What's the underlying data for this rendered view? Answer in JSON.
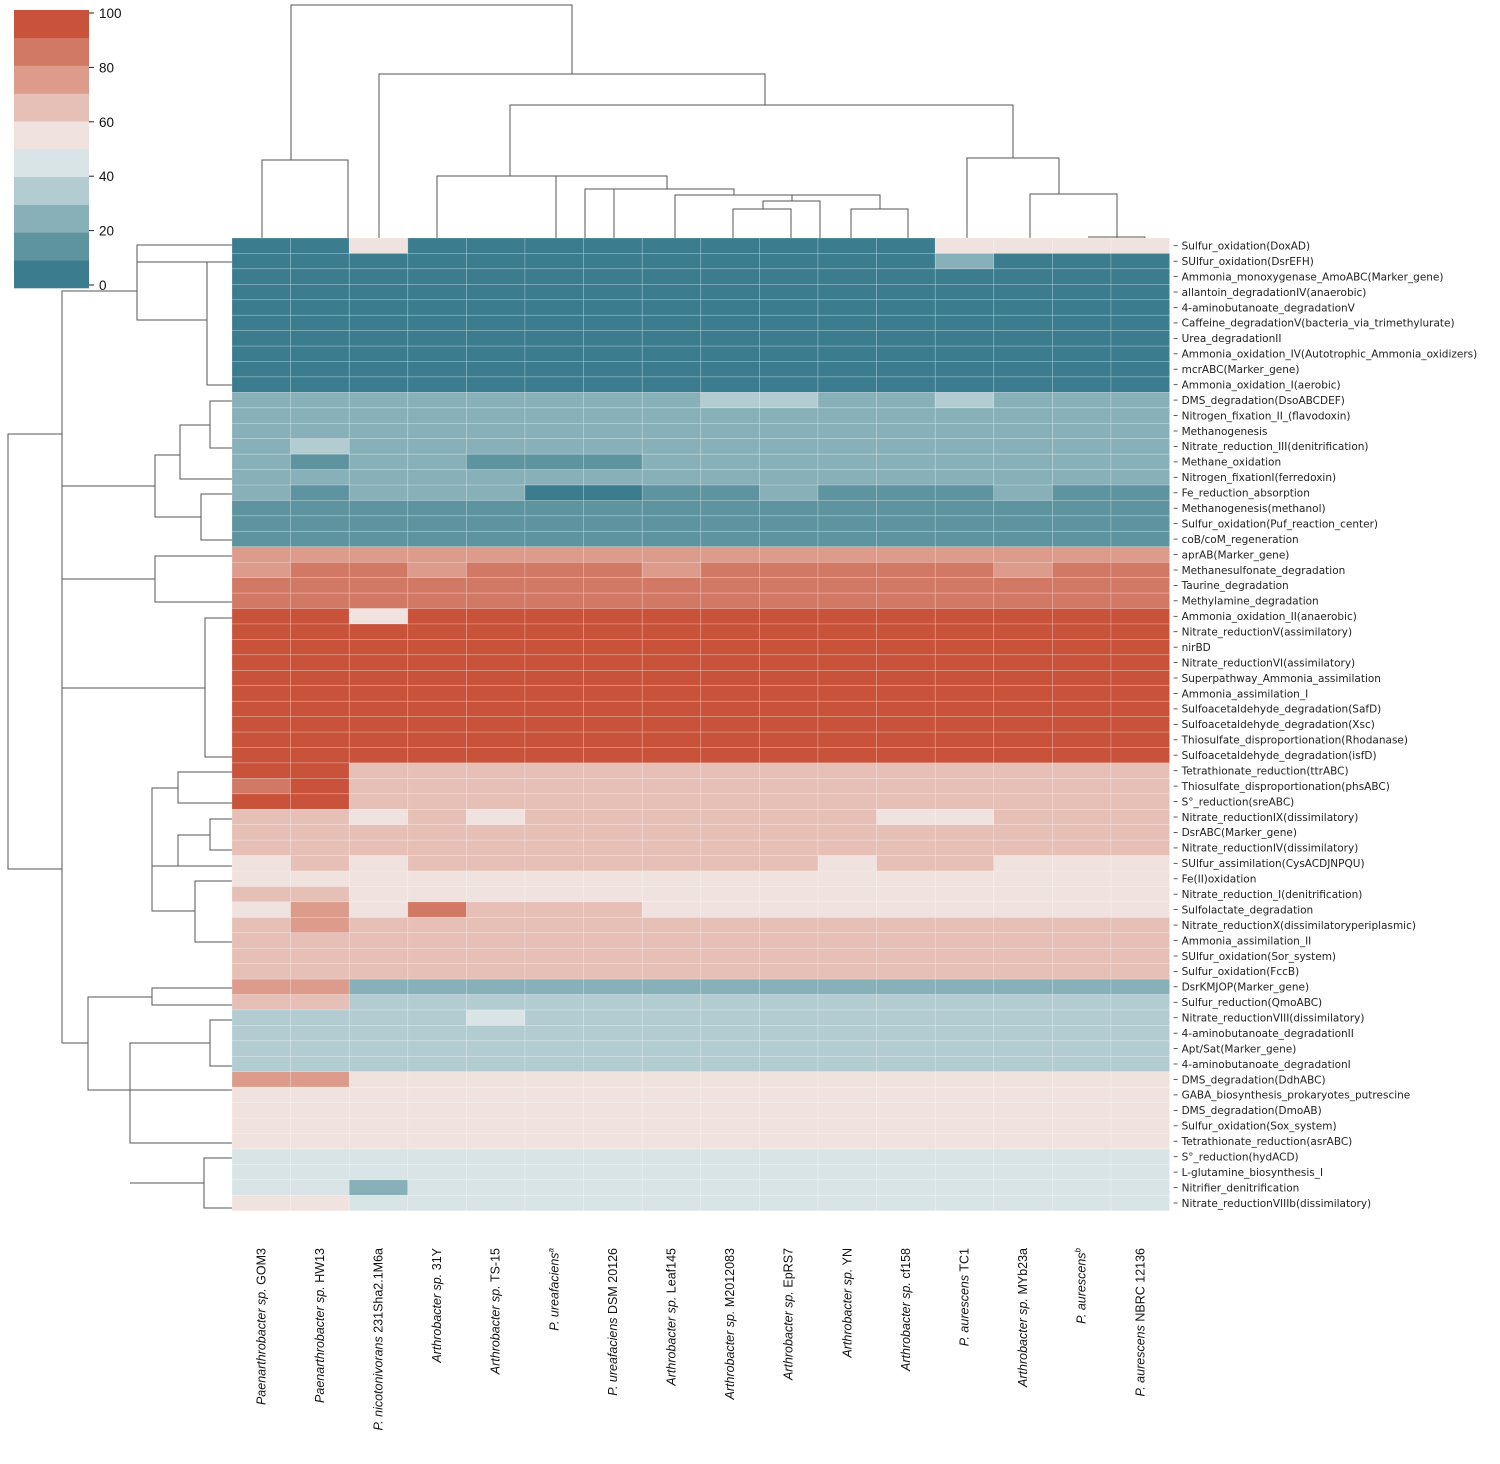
{
  "chart_data": {
    "type": "heatmap",
    "title": "",
    "colorbar": {
      "ticks": [
        "100",
        "80",
        "60",
        "40",
        "20",
        "0"
      ],
      "levels": 10,
      "palette": [
        "#3b7d8f",
        "#5e949f",
        "#88b0b8",
        "#b2ccd1",
        "#d9e4e6",
        "#f0e2df",
        "#e6bfb6",
        "#dc9b8b",
        "#d27965",
        "#c9533a"
      ]
    },
    "columns": [
      {
        "italic": "Paenarthrobacter sp.",
        "rest": " GOM3",
        "sup": ""
      },
      {
        "italic": "Paenarthrobacter sp.",
        "rest": " HW13",
        "sup": ""
      },
      {
        "italic": "P. nicotonivorans",
        "rest": " 231Sha2.1M6a",
        "sup": ""
      },
      {
        "italic": "Arthrobacter sp.",
        "rest": " 31Y",
        "sup": ""
      },
      {
        "italic": "Arthrobacter sp.",
        "rest": " TS-15",
        "sup": ""
      },
      {
        "italic": "P. ureafaciens",
        "rest": "",
        "sup": "a"
      },
      {
        "italic": "P. ureafaciens",
        "rest": " DSM 20126",
        "sup": ""
      },
      {
        "italic": "Arthrobacter sp.",
        "rest": " Leaf145",
        "sup": ""
      },
      {
        "italic": "Arthrobacter sp.",
        "rest": " M2012083",
        "sup": ""
      },
      {
        "italic": "Arthrobacter sp.",
        "rest": " EpRS7",
        "sup": ""
      },
      {
        "italic": "Arthrobacter sp.",
        "rest": " YN",
        "sup": ""
      },
      {
        "italic": "Arthrobacter sp.",
        "rest": " cf158",
        "sup": ""
      },
      {
        "italic": "P. aurescens",
        "rest": " TC1",
        "sup": ""
      },
      {
        "italic": "Arthrobacter sp.",
        "rest": " MYb23a",
        "sup": ""
      },
      {
        "italic": "P. aurescens",
        "rest": "",
        "sup": "b"
      },
      {
        "italic": "P. aurescens",
        "rest": " NBRC 12136",
        "sup": ""
      }
    ],
    "rows": [
      "Sulfur_oxidation(DoxAD)",
      "SUlfur_oxidation(DsrEFH)",
      "Ammonia_monoxygenase_AmoABC(Marker_gene)",
      "allantoin_degradationIV(anaerobic)",
      "4-aminobutanoate_degradationV",
      "Caffeine_degradationV(bacteria_via_trimethylurate)",
      "Urea_degradationII",
      "Ammonia_oxidation_IV(Autotrophic_Ammonia_oxidizers)",
      "mcrABC(Marker_gene)",
      "Ammonia_oxidation_I(aerobic)",
      "DMS_degradation(DsoABCDEF)",
      "Nitrogen_fixation_II_(flavodoxin)",
      "Methanogenesis",
      "Nitrate_reduction_III(denitrification)",
      "Methane_oxidation",
      "Nitrogen_fixationI(ferredoxin)",
      "Fe_reduction_absorption",
      "Methanogenesis(methanol)",
      "Sulfur_oxidation(Puf_reaction_center)",
      "coB/coM_regeneration",
      "aprAB(Marker_gene)",
      "Methanesulfonate_degradation",
      "Taurine_degradation",
      "Methylamine_degradation",
      "Ammonia_oxidation_II(anaerobic)",
      "Nitrate_reductionV(assimilatory)",
      "nirBD",
      "Nitrate_reductionVI(assimilatory)",
      "Superpathway_Ammonia_assimilation",
      "Ammonia_assimilation_I",
      "Sulfoacetaldehyde_degradation(SafD)",
      "Sulfoacetaldehyde_degradation(Xsc)",
      "Thiosulfate_disproportionation(Rhodanase)",
      "Sulfoacetaldehyde_degradation(isfD)",
      "Tetrathionate_reduction(ttrABC)",
      "Thiosulfate_disproportionation(phsABC)",
      "S°_reduction(sreABC)",
      "Nitrate_reductionIX(dissimilatory)",
      "DsrABC(Marker_gene)",
      "Nitrate_reductionIV(dissimilatory)",
      "SUlfur_assimilation(CysACDJNPQU)",
      "Fe(II)oxidation",
      "Nitrate_reduction_I(denitrification)",
      "Sulfolactate_degradation",
      "Nitrate_reductionX(dissimilatoryperiplasmic)",
      "Ammonia_assimilation_II",
      "SUlfur_oxidation(Sor_system)",
      "Sulfur_oxidation(FccB)",
      "DsrKMJOP(Marker_gene)",
      "Sulfur_reduction(QmoABC)",
      "Nitrate_reductionVIII(dissimilatory)",
      "4-aminobutanoate_degradationII",
      "Apt/Sat(Marker_gene)",
      "4-aminobutanoate_degradationI",
      "DMS_degradation(DdhABC)",
      "GABA_biosynthesis_prokaryotes_putrescine",
      "DMS_degradation(DmoAB)",
      "Sulfur_oxidation(Sox_system)",
      "Tetrathionate_reduction(asrABC)",
      "S°_reduction(hydACD)",
      "L-glutamine_biosynthesis_I",
      "Nitrifier_denitrification",
      "Nitrate_reductionVIIIb(dissimilatory)"
    ],
    "values": [
      [
        0,
        0,
        55,
        0,
        0,
        0,
        0,
        0,
        0,
        0,
        0,
        0,
        55,
        55,
        55,
        55
      ],
      [
        0,
        0,
        0,
        0,
        0,
        0,
        0,
        0,
        0,
        0,
        0,
        0,
        25,
        0,
        0,
        0
      ],
      [
        0,
        0,
        0,
        0,
        0,
        0,
        0,
        0,
        0,
        0,
        0,
        0,
        0,
        0,
        0,
        0
      ],
      [
        0,
        0,
        0,
        0,
        0,
        0,
        0,
        0,
        0,
        0,
        0,
        0,
        0,
        0,
        0,
        0
      ],
      [
        0,
        0,
        0,
        0,
        0,
        0,
        0,
        0,
        0,
        0,
        0,
        0,
        0,
        0,
        0,
        0
      ],
      [
        0,
        0,
        0,
        0,
        0,
        0,
        0,
        0,
        0,
        0,
        0,
        0,
        0,
        0,
        0,
        0
      ],
      [
        0,
        0,
        0,
        0,
        0,
        0,
        0,
        0,
        0,
        0,
        0,
        0,
        0,
        0,
        0,
        0
      ],
      [
        0,
        0,
        0,
        0,
        0,
        0,
        0,
        0,
        0,
        0,
        0,
        0,
        0,
        0,
        0,
        0
      ],
      [
        0,
        0,
        0,
        0,
        0,
        0,
        0,
        0,
        0,
        0,
        0,
        0,
        0,
        0,
        0,
        0
      ],
      [
        0,
        0,
        0,
        0,
        0,
        0,
        0,
        0,
        0,
        0,
        0,
        0,
        0,
        0,
        0,
        0
      ],
      [
        25,
        25,
        25,
        25,
        25,
        25,
        25,
        25,
        35,
        35,
        25,
        25,
        35,
        25,
        25,
        25
      ],
      [
        25,
        25,
        25,
        25,
        25,
        25,
        25,
        25,
        25,
        25,
        25,
        25,
        25,
        25,
        25,
        25
      ],
      [
        25,
        25,
        25,
        25,
        25,
        25,
        25,
        25,
        25,
        25,
        25,
        25,
        25,
        25,
        25,
        25
      ],
      [
        25,
        35,
        25,
        25,
        25,
        25,
        25,
        25,
        25,
        25,
        25,
        25,
        25,
        25,
        25,
        25
      ],
      [
        25,
        15,
        25,
        25,
        15,
        15,
        15,
        25,
        25,
        25,
        25,
        25,
        25,
        25,
        25,
        25
      ],
      [
        25,
        25,
        25,
        25,
        25,
        25,
        25,
        25,
        25,
        25,
        25,
        25,
        25,
        25,
        25,
        25
      ],
      [
        25,
        15,
        25,
        25,
        25,
        5,
        5,
        15,
        15,
        25,
        15,
        15,
        15,
        25,
        15,
        15
      ],
      [
        15,
        15,
        15,
        15,
        15,
        15,
        15,
        15,
        15,
        15,
        15,
        15,
        15,
        15,
        15,
        15
      ],
      [
        15,
        15,
        15,
        15,
        15,
        15,
        15,
        15,
        15,
        15,
        15,
        15,
        15,
        15,
        15,
        15
      ],
      [
        15,
        15,
        15,
        15,
        15,
        15,
        15,
        15,
        15,
        15,
        15,
        15,
        15,
        15,
        15,
        15
      ],
      [
        75,
        75,
        75,
        75,
        75,
        75,
        75,
        75,
        75,
        75,
        75,
        75,
        75,
        75,
        75,
        75
      ],
      [
        75,
        85,
        85,
        75,
        85,
        85,
        85,
        75,
        85,
        85,
        85,
        85,
        85,
        75,
        85,
        85
      ],
      [
        85,
        85,
        85,
        85,
        85,
        85,
        85,
        85,
        85,
        85,
        85,
        85,
        85,
        85,
        85,
        85
      ],
      [
        85,
        85,
        85,
        85,
        85,
        85,
        85,
        85,
        85,
        85,
        85,
        85,
        85,
        85,
        85,
        85
      ],
      [
        95,
        95,
        55,
        95,
        95,
        95,
        95,
        95,
        95,
        95,
        95,
        95,
        95,
        95,
        95,
        95
      ],
      [
        95,
        95,
        95,
        95,
        95,
        95,
        95,
        95,
        95,
        95,
        95,
        95,
        95,
        95,
        95,
        95
      ],
      [
        95,
        95,
        95,
        95,
        95,
        95,
        95,
        95,
        95,
        95,
        95,
        95,
        95,
        95,
        95,
        95
      ],
      [
        95,
        95,
        95,
        95,
        95,
        95,
        95,
        95,
        95,
        95,
        95,
        95,
        95,
        95,
        95,
        95
      ],
      [
        95,
        95,
        95,
        95,
        95,
        95,
        95,
        95,
        95,
        95,
        95,
        95,
        95,
        95,
        95,
        95
      ],
      [
        95,
        95,
        95,
        95,
        95,
        95,
        95,
        95,
        95,
        95,
        95,
        95,
        95,
        95,
        95,
        95
      ],
      [
        95,
        95,
        95,
        95,
        95,
        95,
        95,
        95,
        95,
        95,
        95,
        95,
        95,
        95,
        95,
        95
      ],
      [
        95,
        95,
        95,
        95,
        95,
        95,
        95,
        95,
        95,
        95,
        95,
        95,
        95,
        95,
        95,
        95
      ],
      [
        95,
        95,
        95,
        95,
        95,
        95,
        95,
        95,
        95,
        95,
        95,
        95,
        95,
        95,
        95,
        95
      ],
      [
        95,
        95,
        95,
        95,
        95,
        95,
        95,
        95,
        95,
        95,
        95,
        95,
        95,
        95,
        95,
        95
      ],
      [
        95,
        95,
        65,
        65,
        65,
        65,
        65,
        65,
        65,
        65,
        65,
        65,
        65,
        65,
        65,
        65
      ],
      [
        85,
        95,
        65,
        65,
        65,
        65,
        65,
        65,
        65,
        65,
        65,
        65,
        65,
        65,
        65,
        65
      ],
      [
        95,
        95,
        65,
        65,
        65,
        65,
        65,
        65,
        65,
        65,
        65,
        65,
        65,
        65,
        65,
        65
      ],
      [
        65,
        65,
        55,
        65,
        55,
        65,
        65,
        65,
        65,
        65,
        65,
        55,
        55,
        65,
        65,
        65
      ],
      [
        65,
        65,
        65,
        65,
        65,
        65,
        65,
        65,
        65,
        65,
        65,
        65,
        65,
        65,
        65,
        65
      ],
      [
        65,
        65,
        65,
        65,
        65,
        65,
        65,
        65,
        65,
        65,
        65,
        65,
        65,
        65,
        65,
        65
      ],
      [
        55,
        65,
        55,
        65,
        65,
        65,
        65,
        65,
        65,
        65,
        55,
        65,
        65,
        55,
        55,
        55
      ],
      [
        55,
        55,
        55,
        55,
        55,
        55,
        55,
        55,
        55,
        55,
        55,
        55,
        55,
        55,
        55,
        55
      ],
      [
        65,
        65,
        55,
        55,
        55,
        55,
        55,
        55,
        55,
        55,
        55,
        55,
        55,
        55,
        55,
        55
      ],
      [
        55,
        75,
        55,
        85,
        65,
        65,
        65,
        55,
        55,
        55,
        55,
        55,
        55,
        55,
        55,
        55
      ],
      [
        65,
        75,
        65,
        65,
        65,
        65,
        65,
        65,
        65,
        65,
        65,
        65,
        65,
        65,
        65,
        65
      ],
      [
        65,
        65,
        65,
        65,
        65,
        65,
        65,
        65,
        65,
        65,
        65,
        65,
        65,
        65,
        65,
        65
      ],
      [
        65,
        65,
        65,
        65,
        65,
        65,
        65,
        65,
        65,
        65,
        65,
        65,
        65,
        65,
        65,
        65
      ],
      [
        65,
        65,
        65,
        65,
        65,
        65,
        65,
        65,
        65,
        65,
        65,
        65,
        65,
        65,
        65,
        65
      ],
      [
        75,
        75,
        25,
        25,
        25,
        25,
        25,
        25,
        25,
        25,
        25,
        25,
        25,
        25,
        25,
        25
      ],
      [
        65,
        65,
        35,
        35,
        35,
        35,
        35,
        35,
        35,
        35,
        35,
        35,
        35,
        35,
        35,
        35
      ],
      [
        35,
        35,
        35,
        35,
        45,
        35,
        35,
        35,
        35,
        35,
        35,
        35,
        35,
        35,
        35,
        35
      ],
      [
        35,
        35,
        35,
        35,
        35,
        35,
        35,
        35,
        35,
        35,
        35,
        35,
        35,
        35,
        35,
        35
      ],
      [
        35,
        35,
        35,
        35,
        35,
        35,
        35,
        35,
        35,
        35,
        35,
        35,
        35,
        35,
        35,
        35
      ],
      [
        35,
        35,
        35,
        35,
        35,
        35,
        35,
        35,
        35,
        35,
        35,
        35,
        35,
        35,
        35,
        35
      ],
      [
        75,
        75,
        55,
        55,
        55,
        55,
        55,
        55,
        55,
        55,
        55,
        55,
        55,
        55,
        55,
        55
      ],
      [
        55,
        55,
        55,
        55,
        55,
        55,
        55,
        55,
        55,
        55,
        55,
        55,
        55,
        55,
        55,
        55
      ],
      [
        55,
        55,
        55,
        55,
        55,
        55,
        55,
        55,
        55,
        55,
        55,
        55,
        55,
        55,
        55,
        55
      ],
      [
        55,
        55,
        55,
        55,
        55,
        55,
        55,
        55,
        55,
        55,
        55,
        55,
        55,
        55,
        55,
        55
      ],
      [
        55,
        55,
        55,
        55,
        55,
        55,
        55,
        55,
        55,
        55,
        55,
        55,
        55,
        55,
        55,
        55
      ],
      [
        45,
        45,
        45,
        45,
        45,
        45,
        45,
        45,
        45,
        45,
        45,
        45,
        45,
        45,
        45,
        45
      ],
      [
        45,
        45,
        45,
        45,
        45,
        45,
        45,
        45,
        45,
        45,
        45,
        45,
        45,
        45,
        45,
        45
      ],
      [
        45,
        45,
        25,
        45,
        45,
        45,
        45,
        45,
        45,
        45,
        45,
        45,
        45,
        45,
        45,
        45
      ],
      [
        55,
        55,
        45,
        45,
        45,
        45,
        45,
        45,
        45,
        45,
        45,
        45,
        45,
        45,
        45,
        45
      ]
    ]
  }
}
